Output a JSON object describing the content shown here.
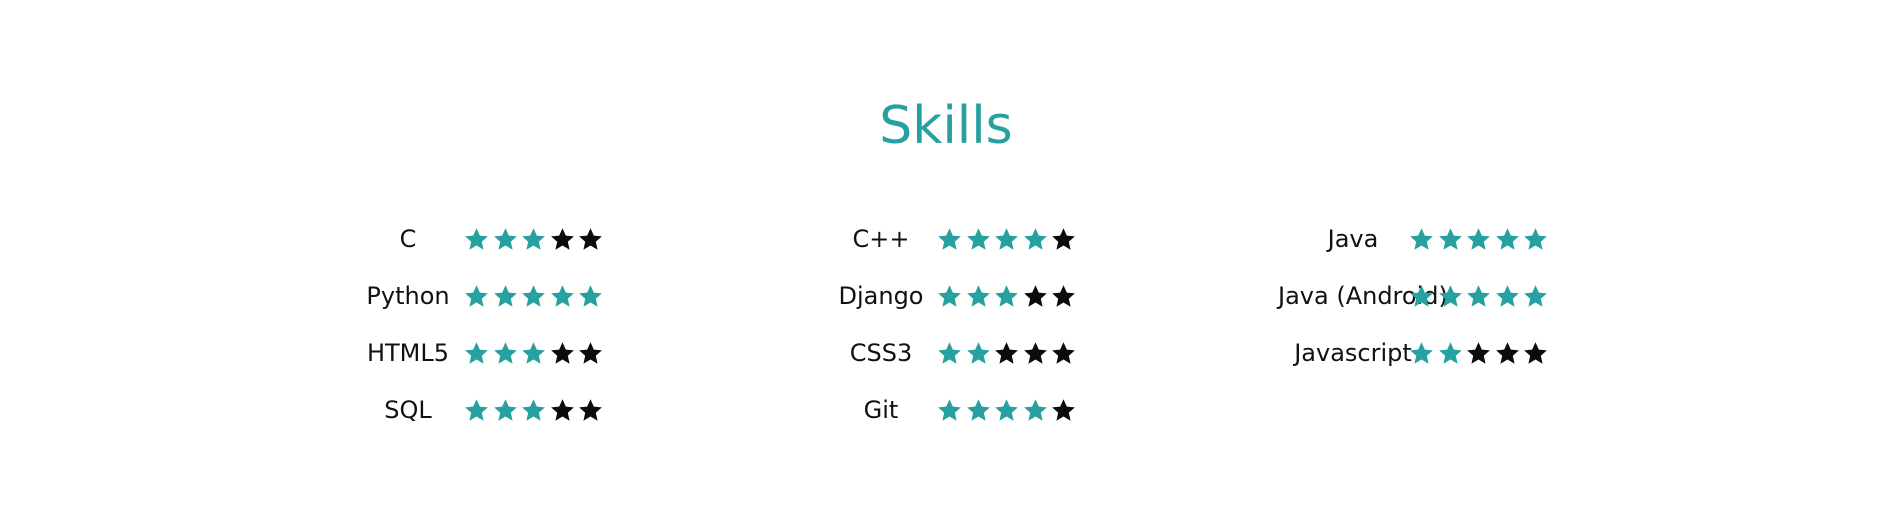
{
  "title": "Skills",
  "colors": {
    "accent": "#26a19f",
    "star_filled": "#26a19f",
    "star_empty": "#0b0b0b"
  },
  "max_stars": 5,
  "columns": [
    {
      "skills": [
        {
          "name": "C",
          "rating": 3
        },
        {
          "name": "Python",
          "rating": 5
        },
        {
          "name": "HTML5",
          "rating": 3
        },
        {
          "name": "SQL",
          "rating": 3
        }
      ]
    },
    {
      "skills": [
        {
          "name": "C++",
          "rating": 4
        },
        {
          "name": "Django",
          "rating": 3
        },
        {
          "name": "CSS3",
          "rating": 2
        },
        {
          "name": "Git",
          "rating": 4
        }
      ]
    },
    {
      "skills": [
        {
          "name": "Java",
          "rating": 5
        },
        {
          "name": "Java (Android)",
          "rating": 5
        },
        {
          "name": "Javascript",
          "rating": 2
        }
      ]
    }
  ]
}
